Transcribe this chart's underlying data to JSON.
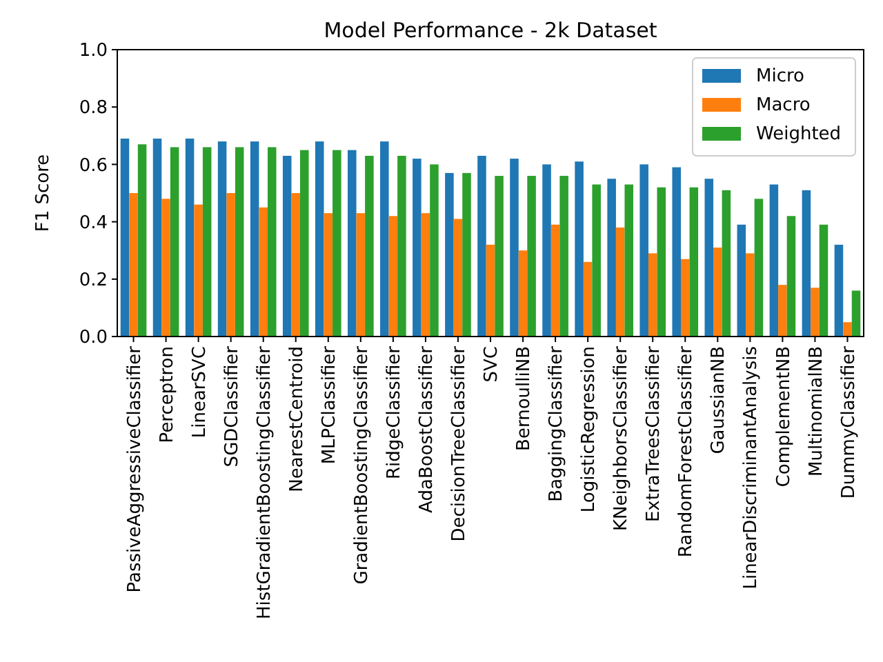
{
  "chart_data": {
    "type": "bar",
    "title": "Model Performance - 2k Dataset",
    "ylabel": "F1 Score",
    "categories": [
      "PassiveAggressiveClassifier",
      "Perceptron",
      "LinearSVC",
      "SGDClassifier",
      "HistGradientBoostingClassifier",
      "NearestCentroid",
      "MLPClassifier",
      "GradientBoostingClassifier",
      "RidgeClassifier",
      "AdaBoostClassifier",
      "DecisionTreeClassifier",
      "SVC",
      "BernoulliNB",
      "BaggingClassifier",
      "LogisticRegression",
      "KNeighborsClassifier",
      "ExtraTreesClassifier",
      "RandomForestClassifier",
      "GaussianNB",
      "LinearDiscriminantAnalysis",
      "ComplementNB",
      "MultinomialNB",
      "DummyClassifier"
    ],
    "series": [
      {
        "name": "Micro",
        "color": "#1f77b4",
        "values": [
          0.69,
          0.69,
          0.69,
          0.68,
          0.68,
          0.63,
          0.68,
          0.65,
          0.68,
          0.62,
          0.57,
          0.63,
          0.62,
          0.6,
          0.61,
          0.55,
          0.6,
          0.59,
          0.55,
          0.39,
          0.53,
          0.51,
          0.32
        ]
      },
      {
        "name": "Macro",
        "color": "#ff7f0e",
        "values": [
          0.5,
          0.48,
          0.46,
          0.5,
          0.45,
          0.5,
          0.43,
          0.43,
          0.42,
          0.43,
          0.41,
          0.32,
          0.3,
          0.39,
          0.26,
          0.38,
          0.29,
          0.27,
          0.31,
          0.29,
          0.18,
          0.17,
          0.05
        ]
      },
      {
        "name": "Weighted",
        "color": "#2ca02c",
        "values": [
          0.67,
          0.66,
          0.66,
          0.66,
          0.66,
          0.65,
          0.65,
          0.63,
          0.63,
          0.6,
          0.57,
          0.56,
          0.56,
          0.56,
          0.53,
          0.53,
          0.52,
          0.52,
          0.51,
          0.48,
          0.42,
          0.39,
          0.16
        ]
      }
    ],
    "ylim": [
      0,
      1
    ],
    "yticks": [
      {
        "value": 0,
        "label": "0.0"
      },
      {
        "value": 0.2,
        "label": "0.2"
      },
      {
        "value": 0.4,
        "label": "0.4"
      },
      {
        "value": 0.6,
        "label": "0.6"
      },
      {
        "value": 0.8,
        "label": "0.8"
      },
      {
        "value": 1,
        "label": "1.0"
      }
    ],
    "legend": "top right"
  }
}
